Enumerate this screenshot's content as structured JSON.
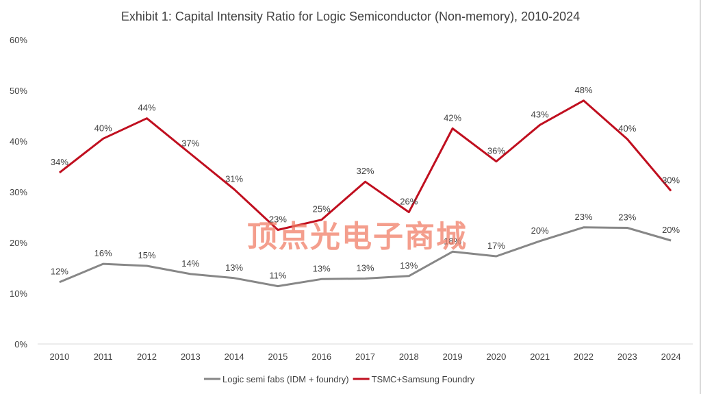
{
  "chart_data": {
    "type": "line",
    "title": "Exhibit 1: Capital Intensity Ratio for Logic Semiconductor (Non-memory), 2010-2024",
    "xlabel": "",
    "ylabel": "",
    "ylim": [
      0,
      60
    ],
    "y_ticks": [
      "0%",
      "10%",
      "20%",
      "30%",
      "40%",
      "50%",
      "60%"
    ],
    "categories": [
      "2010",
      "2011",
      "2012",
      "2013",
      "2014",
      "2015",
      "2016",
      "2017",
      "2018",
      "2019",
      "2020",
      "2021",
      "2022",
      "2023",
      "2024"
    ],
    "grid": false,
    "legend_position": "bottom",
    "series": [
      {
        "name": "Logic semi fabs (IDM + foundry)",
        "color": "#878787",
        "values": [
          12.2,
          15.8,
          15.4,
          13.8,
          13.0,
          11.4,
          12.8,
          12.9,
          13.4,
          18.2,
          17.3,
          20.3,
          23.0,
          22.9,
          20.4
        ],
        "labels": [
          "12%",
          "16%",
          "15%",
          "14%",
          "13%",
          "11%",
          "13%",
          "13%",
          "13%",
          "18%",
          "17%",
          "20%",
          "23%",
          "23%",
          "20%"
        ]
      },
      {
        "name": "TSMC+Samsung Foundry",
        "color": "#c00f1f",
        "values": [
          33.8,
          40.5,
          44.5,
          37.5,
          30.5,
          22.5,
          24.5,
          32.0,
          26.0,
          42.5,
          36.0,
          43.2,
          48.0,
          40.4,
          30.2
        ],
        "labels": [
          "34%",
          "40%",
          "44%",
          "37%",
          "31%",
          "23%",
          "25%",
          "32%",
          "26%",
          "42%",
          "36%",
          "43%",
          "48%",
          "40%",
          "30%"
        ]
      }
    ]
  },
  "watermark_text": "顶点光电子商城"
}
